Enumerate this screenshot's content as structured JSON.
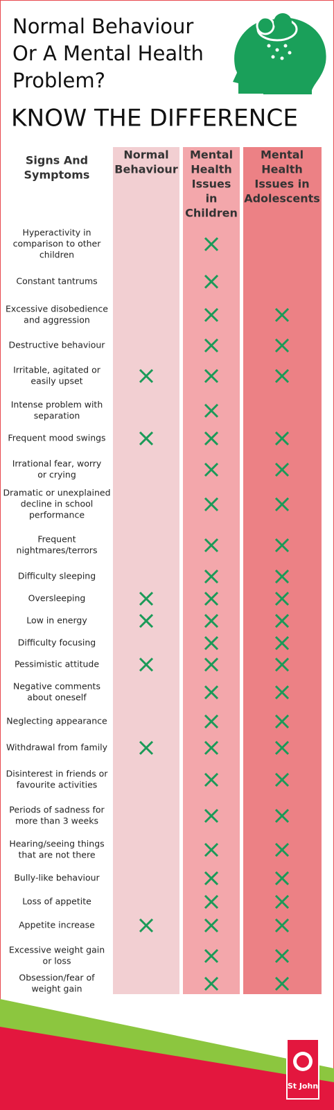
{
  "title": {
    "lines": [
      "Normal Behaviour",
      "Or A Mental Health",
      "Problem?"
    ],
    "emphasis": "KNOW THE DIFFERENCE"
  },
  "table": {
    "headers": [
      [
        "Signs And",
        "Symptoms"
      ],
      [
        "Normal",
        "Behaviour"
      ],
      [
        "Mental",
        "Health",
        "Issues",
        "in",
        "Children"
      ],
      [
        "Mental",
        "Health",
        "Issues in",
        "Adolescents"
      ]
    ],
    "rows": [
      {
        "label": [
          "Hyperactivity in",
          "comparison to other",
          "children"
        ],
        "checks": [
          false,
          true,
          false
        ]
      },
      {
        "label": [
          "Constant tantrums"
        ],
        "checks": [
          false,
          true,
          false
        ]
      },
      {
        "label": [
          "Excessive disobedience",
          "and aggression"
        ],
        "checks": [
          false,
          true,
          true
        ]
      },
      {
        "label": [
          "Destructive behaviour"
        ],
        "checks": [
          false,
          true,
          true
        ]
      },
      {
        "label": [
          "Irritable, agitated or",
          "easily upset"
        ],
        "checks": [
          true,
          true,
          true
        ]
      },
      {
        "label": [
          "Intense problem with",
          "separation"
        ],
        "checks": [
          false,
          true,
          false
        ]
      },
      {
        "label": [
          "Frequent mood swings"
        ],
        "checks": [
          true,
          true,
          true
        ]
      },
      {
        "label": [
          "Irrational fear, worry",
          "or crying"
        ],
        "checks": [
          false,
          true,
          true
        ]
      },
      {
        "label": [
          "Dramatic or unexplained",
          "decline in school",
          "performance"
        ],
        "checks": [
          false,
          true,
          true
        ]
      },
      {
        "label": [
          "Frequent",
          "nightmares/terrors"
        ],
        "checks": [
          false,
          true,
          true
        ]
      },
      {
        "label": [
          "Difficulty sleeping"
        ],
        "checks": [
          false,
          true,
          true
        ]
      },
      {
        "label": [
          "Oversleeping"
        ],
        "checks": [
          true,
          true,
          true
        ]
      },
      {
        "label": [
          "Low in energy"
        ],
        "checks": [
          true,
          true,
          true
        ]
      },
      {
        "label": [
          "Difficulty focusing"
        ],
        "checks": [
          false,
          true,
          true
        ]
      },
      {
        "label": [
          "Pessimistic attitude"
        ],
        "checks": [
          true,
          true,
          true
        ]
      },
      {
        "label": [
          "Negative comments",
          "about oneself"
        ],
        "checks": [
          false,
          true,
          true
        ]
      },
      {
        "label": [
          "Neglecting appearance"
        ],
        "checks": [
          false,
          true,
          true
        ]
      },
      {
        "label": [
          "Withdrawal from family"
        ],
        "checks": [
          true,
          true,
          true
        ]
      },
      {
        "label": [
          "Disinterest in friends or",
          "favourite activities"
        ],
        "checks": [
          false,
          true,
          true
        ]
      },
      {
        "label": [
          "Periods of sadness for",
          "more than 3 weeks"
        ],
        "checks": [
          false,
          true,
          true
        ]
      },
      {
        "label": [
          "Hearing/seeing things",
          "that are not there"
        ],
        "checks": [
          false,
          true,
          true
        ]
      },
      {
        "label": [
          "Bully-like behaviour"
        ],
        "checks": [
          false,
          true,
          true
        ]
      },
      {
        "label": [
          "Loss of appetite"
        ],
        "checks": [
          false,
          true,
          true
        ]
      },
      {
        "label": [
          "Appetite increase"
        ],
        "checks": [
          true,
          true,
          true
        ]
      },
      {
        "label": [
          "Excessive weight gain",
          "or loss"
        ],
        "checks": [
          false,
          true,
          true
        ]
      },
      {
        "label": [
          "Obsession/fear of",
          "weight gain"
        ],
        "checks": [
          false,
          true,
          true
        ]
      }
    ]
  },
  "footer": {
    "logo": "St John"
  }
}
